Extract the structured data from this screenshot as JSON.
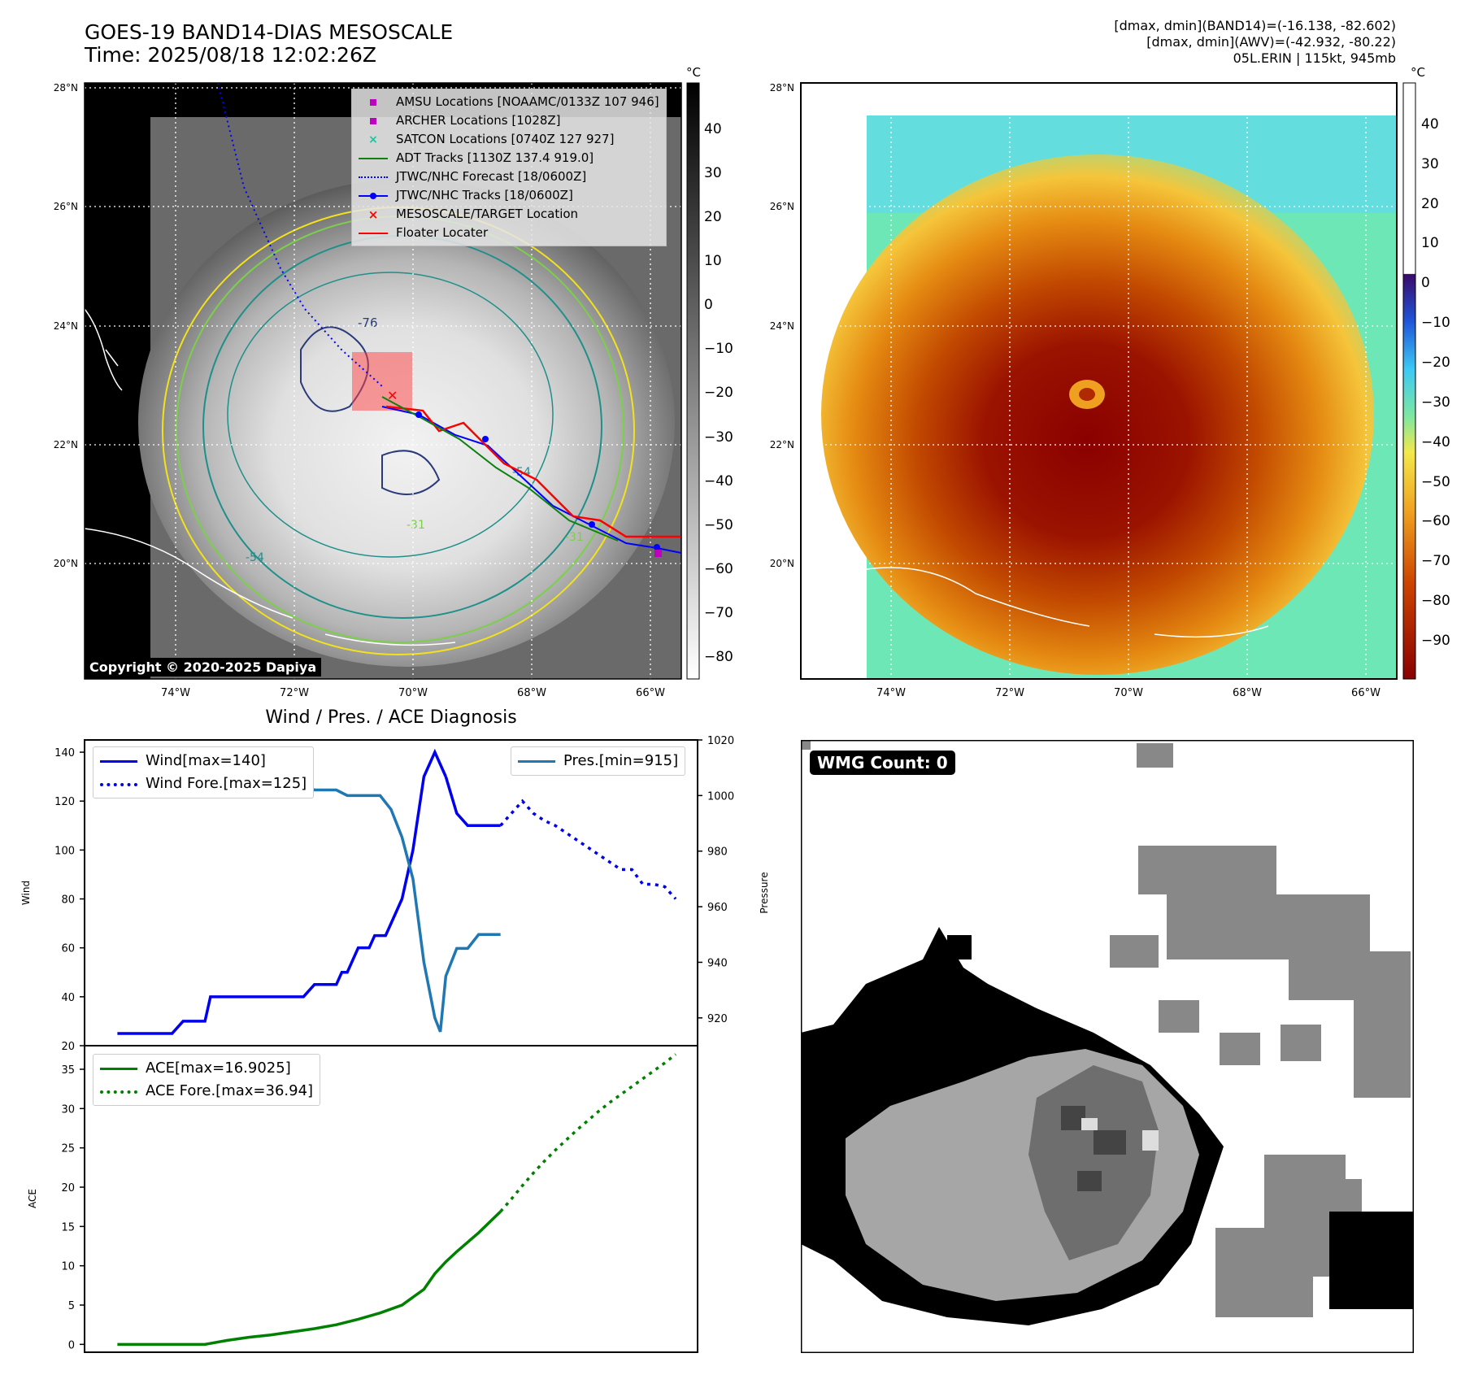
{
  "header": {
    "title_line1": "GOES-19 BAND14-DIAS MESOSCALE",
    "title_line2": "Time: 2025/08/18 12:02:26Z",
    "stats_line1": "[dmax, dmin](BAND14)=(-16.138, -82.602)",
    "stats_line2": "[dmax, dmin](AWV)=(-42.932, -80.22)",
    "stats_line3": "05L.ERIN | 115kt, 945mb"
  },
  "map_panel_left": {
    "lat_labels": [
      "28°N",
      "26°N",
      "24°N",
      "22°N",
      "20°N"
    ],
    "lon_labels": [
      "74°W",
      "72°W",
      "70°W",
      "68°W",
      "66°W"
    ],
    "colorbar_unit": "°C",
    "colorbar_ticks": [
      "40",
      "30",
      "20",
      "10",
      "0",
      "−10",
      "−20",
      "−30",
      "−40",
      "−50",
      "−60",
      "−70",
      "−80"
    ],
    "contour_label": "-76",
    "contour_labels_minor": [
      "-54",
      "-31",
      "-54",
      "-31"
    ],
    "copyright": "Copyright © 2020-2025 Dapiya",
    "legend": [
      {
        "label": "AMSU Locations [NOAAMC/0133Z 107 946]",
        "color": "#c000c0",
        "symbol": "square"
      },
      {
        "label": "ARCHER Locations [1028Z]",
        "color": "#c000c0",
        "symbol": "square"
      },
      {
        "label": "SATCON Locations [0740Z 127 927]",
        "color": "#20c0a0",
        "symbol": "x"
      },
      {
        "label": "ADT Tracks [1130Z 137.4 919.0]",
        "color": "#108010",
        "symbol": "line"
      },
      {
        "label": "JTWC/NHC Forecast [18/0600Z]",
        "color": "#0000ff",
        "symbol": "dotted"
      },
      {
        "label": "JTWC/NHC Tracks [18/0600Z]",
        "color": "#0000ff",
        "symbol": "line-dot"
      },
      {
        "label": "MESOSCALE/TARGET Location",
        "color": "#ff0000",
        "symbol": "x"
      },
      {
        "label": "Floater Locater",
        "color": "#ff0000",
        "symbol": "line"
      }
    ]
  },
  "map_panel_right": {
    "lat_labels": [
      "28°N",
      "26°N",
      "24°N",
      "22°N",
      "20°N"
    ],
    "lon_labels": [
      "74°W",
      "72°W",
      "70°W",
      "68°W",
      "66°W"
    ],
    "colorbar_unit": "°C",
    "colorbar_ticks": [
      "40",
      "30",
      "20",
      "10",
      "0",
      "−10",
      "−20",
      "−30",
      "−40",
      "−50",
      "−60",
      "−70",
      "−80",
      "−90"
    ]
  },
  "wmg_panel": {
    "count_label": "WMG Count: 0"
  },
  "chart_data": [
    {
      "type": "line",
      "title": "Wind / Pres. / ACE Diagnosis",
      "ylabel": "Wind",
      "ylabel_right": "Pressure",
      "ylim": [
        20,
        145
      ],
      "ylim_right": [
        910,
        1020
      ],
      "yticks": [
        "140",
        "120",
        "100",
        "80",
        "60",
        "40",
        "20"
      ],
      "yticks_right": [
        "1020",
        "1000",
        "980",
        "960",
        "940",
        "920"
      ],
      "legend_left": [
        "Wind[max=140]",
        "Wind Fore.[max=125]"
      ],
      "legend_right": [
        "Pres.[min=915]"
      ],
      "series": [
        {
          "name": "Wind[max=140]",
          "color": "#0000ee",
          "style": "solid",
          "x": [
            0,
            5,
            6,
            8,
            8.5,
            12,
            13,
            17,
            18,
            20,
            20.5,
            21,
            22,
            23,
            23.5,
            24.5,
            25,
            26,
            27,
            28,
            29,
            30
          ],
          "y": [
            25,
            25,
            30,
            30,
            40,
            40,
            40,
            40,
            45,
            45,
            50,
            50,
            60,
            60,
            65,
            65,
            70,
            80,
            100,
            130,
            140,
            130
          ]
        },
        {
          "name": "Wind_after_peak",
          "color": "#0000ee",
          "style": "solid",
          "x": [
            30,
            31,
            32,
            34,
            35
          ],
          "y": [
            130,
            115,
            110,
            110,
            110
          ]
        },
        {
          "name": "Wind Fore.[max=125]",
          "color": "#0000ee",
          "style": "dotted",
          "x": [
            35,
            36,
            37,
            38,
            39,
            40,
            41,
            42,
            43,
            44,
            45,
            46,
            47,
            48,
            49,
            50,
            51
          ],
          "y": [
            110,
            115,
            120,
            115,
            112,
            110,
            107,
            104,
            101,
            98,
            95,
            92,
            92,
            86,
            86,
            85,
            80
          ]
        },
        {
          "name": "Pres.[min=915]",
          "color": "#1f77b4",
          "style": "solid",
          "x": [
            0,
            1,
            2,
            3,
            5,
            8,
            10,
            12,
            13,
            15,
            17,
            18,
            19,
            20,
            21,
            22,
            23,
            24,
            25,
            26,
            27,
            28,
            28.5,
            29,
            29.5,
            30,
            31,
            32,
            33,
            34,
            35
          ],
          "y": [
            1015,
            1015,
            1010,
            1008,
            1007,
            1007,
            1006,
            1006,
            1006,
            1004,
            1004,
            1002,
            1002,
            1002,
            1000,
            1000,
            1000,
            1000,
            995,
            985,
            970,
            940,
            930,
            920,
            915,
            935,
            945,
            945,
            950,
            950,
            950
          ]
        }
      ]
    },
    {
      "type": "line",
      "ylabel": "ACE",
      "ylim": [
        -1,
        38
      ],
      "yticks": [
        "35",
        "30",
        "25",
        "20",
        "15",
        "10",
        "5",
        "0"
      ],
      "legend": [
        "ACE[max=16.9025]",
        "ACE Fore.[max=36.94]"
      ],
      "series": [
        {
          "name": "ACE[max=16.9025]",
          "color": "#008000",
          "style": "solid",
          "x": [
            0,
            5,
            8,
            10,
            12,
            14,
            16,
            18,
            20,
            22,
            24,
            26,
            28,
            29,
            30,
            31,
            32,
            33,
            35
          ],
          "y": [
            0,
            0,
            0,
            0.5,
            0.9,
            1.2,
            1.6,
            2.0,
            2.5,
            3.2,
            4.0,
            5.0,
            7.0,
            9.0,
            10.5,
            11.8,
            13.0,
            14.2,
            16.9
          ]
        },
        {
          "name": "ACE Fore.[max=36.94]",
          "color": "#008000",
          "style": "dotted",
          "x": [
            35,
            36,
            37,
            38,
            39,
            40,
            41,
            42,
            43,
            44,
            45,
            46,
            47,
            48,
            49,
            50,
            51
          ],
          "y": [
            16.9,
            18.5,
            20.2,
            21.8,
            23.3,
            24.7,
            26.0,
            27.3,
            28.5,
            29.7,
            30.8,
            31.8,
            32.8,
            33.8,
            34.8,
            35.8,
            36.9
          ]
        }
      ]
    }
  ],
  "colors": {
    "track_red": "#ff0000",
    "forecast_blue": "#0000ff",
    "contour_dark": "#2b3b7a",
    "contour_teal": "#1f8f8a",
    "contour_green": "#7ccf4a",
    "contour_yellow": "#f3e21b"
  }
}
